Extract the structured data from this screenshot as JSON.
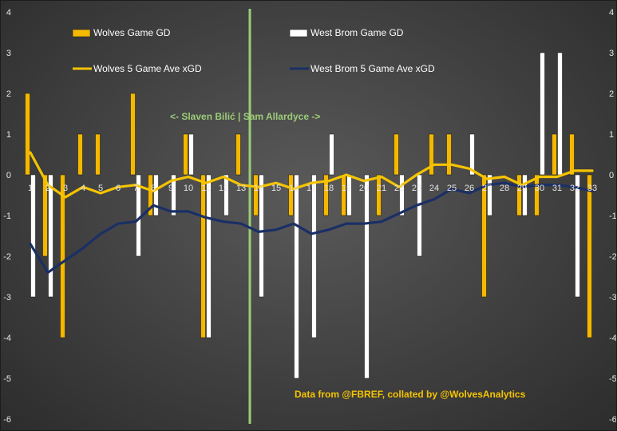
{
  "chart_data": {
    "type": "bar",
    "title": "",
    "xlabel": "",
    "ylabel": "",
    "ylim": [
      -6,
      4
    ],
    "yticks": [
      4,
      3,
      2,
      1,
      0,
      -1,
      -2,
      -3,
      -4,
      -5,
      -6
    ],
    "categories": [
      "1",
      "2",
      "3",
      "4",
      "5",
      "6",
      "7",
      "8",
      "9",
      "10",
      "11",
      "12",
      "13",
      "14",
      "15",
      "16",
      "17",
      "18",
      "19",
      "20",
      "21",
      "22",
      "23",
      "24",
      "25",
      "26",
      "27",
      "28",
      "29",
      "30",
      "31",
      "32",
      "33"
    ],
    "series": [
      {
        "name": "Wolves Game GD",
        "kind": "bar",
        "color": "#f5b800",
        "values": [
          2,
          -2,
          -4,
          1,
          1,
          0,
          2,
          -1,
          0,
          1,
          -4,
          0,
          1,
          -1,
          0,
          -1,
          0,
          -1,
          -1,
          0,
          -1,
          1,
          0,
          1,
          1,
          0,
          -3,
          0,
          -1,
          -1,
          1,
          1,
          -4
        ]
      },
      {
        "name": "West Brom Game GD",
        "kind": "bar",
        "color": "#ffffff",
        "values": [
          -3,
          -3,
          0,
          0,
          0,
          0,
          -2,
          -1,
          -1,
          1,
          -4,
          -1,
          0,
          -3,
          0,
          -5,
          -4,
          1,
          -1,
          -5,
          0,
          -1,
          -2,
          0,
          0,
          1,
          -1,
          0,
          -1,
          3,
          3,
          -3,
          0
        ]
      },
      {
        "name": "Wolves 5 Game Ave xGD",
        "kind": "line",
        "color": "#f5c400",
        "values": [
          0.55,
          -0.25,
          -0.55,
          -0.3,
          -0.45,
          -0.3,
          -0.25,
          -0.4,
          -0.15,
          -0.05,
          -0.2,
          -0.05,
          -0.25,
          -0.3,
          -0.2,
          -0.35,
          -0.2,
          -0.15,
          0.0,
          -0.15,
          -0.05,
          -0.3,
          0.0,
          0.25,
          0.25,
          0.15,
          -0.1,
          -0.05,
          -0.25,
          -0.05,
          -0.05,
          0.1,
          0.1
        ]
      },
      {
        "name": "West Brom 5 Game Ave xGD",
        "kind": "line",
        "color": "#1a2f66",
        "values": [
          -1.7,
          -2.4,
          -2.1,
          -1.8,
          -1.45,
          -1.2,
          -1.15,
          -0.75,
          -0.9,
          -0.9,
          -1.05,
          -1.15,
          -1.2,
          -1.4,
          -1.35,
          -1.2,
          -1.45,
          -1.35,
          -1.2,
          -1.2,
          -1.15,
          -0.95,
          -0.75,
          -0.6,
          -0.35,
          -0.45,
          -0.25,
          -0.2,
          -0.3,
          -0.25,
          -0.25,
          -0.3,
          -0.4
        ]
      }
    ],
    "visible_x_labels": [
      "1",
      "2",
      "3",
      "4",
      "5",
      "6",
      "7",
      "8",
      "9",
      "10",
      "11",
      "12",
      "13",
      "14",
      "15",
      "16",
      "17",
      "18",
      "19",
      "20",
      "21",
      "22",
      "23",
      "24",
      "25",
      "26",
      "27",
      "28",
      "29",
      "30",
      "31",
      "32",
      "33"
    ],
    "manager_change_after": 13,
    "manager_change_color": "#9ccc78",
    "annotations": {
      "manager_text": "<- Slaven Bilić | Sam Allardyce ->",
      "manager_color": "#9ccc78",
      "source_text": "Data from @FBREF, collated by @WolvesAnalytics",
      "source_color": "#f5c400"
    },
    "legend": {
      "placement": "top",
      "items": [
        {
          "label": "Wolves Game GD",
          "swatch": "bar",
          "color": "#f5b800"
        },
        {
          "label": "West Brom Game GD",
          "swatch": "bar",
          "color": "#ffffff"
        },
        {
          "label": "Wolves 5 Game Ave xGD",
          "swatch": "line",
          "color": "#f5c400"
        },
        {
          "label": "West Brom 5 Game Ave xGD",
          "swatch": "line",
          "color": "#1a2f66"
        }
      ]
    }
  }
}
